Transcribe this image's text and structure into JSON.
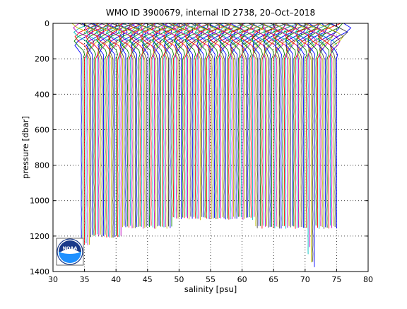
{
  "chart_data": {
    "type": "line",
    "title": "WMO ID 3900679, internal ID 2738, 20–Oct–2018",
    "xlabel": "salinity [psu]",
    "ylabel": "pressure [dbar]",
    "xlim": [
      30,
      80
    ],
    "ylim": [
      0,
      1400
    ],
    "y_reversed": true,
    "grid": true,
    "x_ticks": [
      30,
      35,
      40,
      45,
      50,
      55,
      60,
      65,
      70,
      75,
      80
    ],
    "y_ticks": [
      0,
      200,
      400,
      600,
      800,
      1000,
      1200,
      1400
    ],
    "x_tick_labels": [
      "30",
      "35",
      "40",
      "45",
      "50",
      "55",
      "60",
      "65",
      "70",
      "75",
      "80"
    ],
    "y_tick_labels": [
      "0",
      "200",
      "400",
      "600",
      "800",
      "1000",
      "1200",
      "1400"
    ],
    "series_colors": [
      "#0000ff",
      "#008000",
      "#ff0000",
      "#00bfbf",
      "#bf00bf",
      "#bfbf00",
      "#404040"
    ],
    "profile_offset_range": [
      34.5,
      75.0
    ],
    "profile_count": 162,
    "logo": {
      "icon": "noaa-logo-icon",
      "text": "NOAA",
      "colors": {
        "dark": "#1a3a8a",
        "light": "#1e90ff",
        "ring": "#ffffff"
      }
    }
  }
}
